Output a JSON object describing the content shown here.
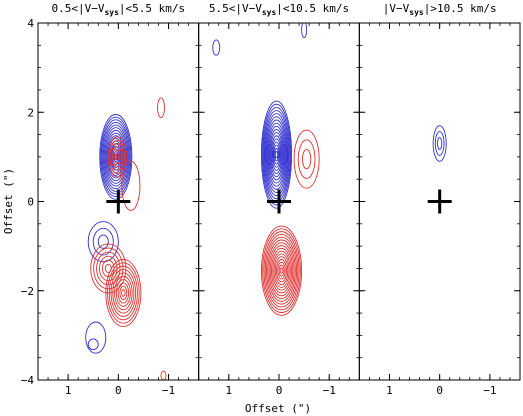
{
  "chart_data": {
    "type": "contour",
    "xlabel": "Offset (\")",
    "ylabel": "Offset (\")",
    "xlim": [
      1.6,
      -1.6
    ],
    "ylim": [
      -4,
      4
    ],
    "x_ticks": [
      1,
      0,
      -1
    ],
    "x_tick_labels": [
      "1",
      "0",
      "−1"
    ],
    "y_ticks": [
      -4,
      -2,
      0,
      2,
      4
    ],
    "y_tick_labels": [
      "−4",
      "−2",
      "0",
      "2",
      "4"
    ],
    "grid": false,
    "colors": {
      "blue": "#3030d0",
      "red": "#e03030",
      "marker": "#000000"
    },
    "marker": {
      "shape": "cross",
      "x": 0,
      "y": 0
    },
    "panels": [
      {
        "title": "0.5<|V−V",
        "title_sub": "sys",
        "title_tail": "|<5.5 km/s",
        "series": [
          {
            "color": "blue",
            "components": [
              {
                "x": 0.05,
                "y": 1.0,
                "rx": 0.32,
                "ry": 0.95,
                "levels": 16
              },
              {
                "x": 0.3,
                "y": -0.9,
                "rx": 0.3,
                "ry": 0.45,
                "levels": 3
              },
              {
                "x": 0.45,
                "y": -3.05,
                "rx": 0.2,
                "ry": 0.35,
                "levels": 1
              },
              {
                "x": 0.5,
                "y": -3.2,
                "rx": 0.1,
                "ry": 0.12,
                "levels": 1
              }
            ]
          },
          {
            "color": "red",
            "components": [
              {
                "x": 0.02,
                "y": 1.0,
                "rx": 0.18,
                "ry": 0.45,
                "levels": 6
              },
              {
                "x": -0.25,
                "y": 0.35,
                "rx": 0.18,
                "ry": 0.55,
                "levels": 1
              },
              {
                "x": -0.85,
                "y": 2.1,
                "rx": 0.07,
                "ry": 0.22,
                "levels": 1
              },
              {
                "x": 0.2,
                "y": -1.5,
                "rx": 0.35,
                "ry": 0.55,
                "levels": 6
              },
              {
                "x": -0.1,
                "y": -2.05,
                "rx": 0.35,
                "ry": 0.75,
                "levels": 10
              },
              {
                "x": -0.9,
                "y": -3.9,
                "rx": 0.05,
                "ry": 0.1,
                "levels": 1
              }
            ]
          }
        ]
      },
      {
        "title": "5.5<|V−V",
        "title_sub": "sys",
        "title_tail": "|<10.5 km/s",
        "series": [
          {
            "color": "blue",
            "components": [
              {
                "x": 0.05,
                "y": 1.05,
                "rx": 0.3,
                "ry": 1.2,
                "levels": 17
              },
              {
                "x": 1.25,
                "y": 3.45,
                "rx": 0.07,
                "ry": 0.17,
                "levels": 1
              },
              {
                "x": -0.5,
                "y": 3.85,
                "rx": 0.05,
                "ry": 0.18,
                "levels": 1
              }
            ]
          },
          {
            "color": "red",
            "components": [
              {
                "x": -0.55,
                "y": 0.95,
                "rx": 0.25,
                "ry": 0.65,
                "levels": 3
              },
              {
                "x": -0.05,
                "y": -1.55,
                "rx": 0.4,
                "ry": 1.0,
                "levels": 16
              }
            ]
          }
        ]
      },
      {
        "title": "|V−V",
        "title_sub": "sys",
        "title_tail": "|>10.5 km/s",
        "series": [
          {
            "color": "blue",
            "components": [
              {
                "x": 0.0,
                "y": 1.3,
                "rx": 0.13,
                "ry": 0.4,
                "levels": 3
              }
            ]
          }
        ]
      }
    ]
  }
}
